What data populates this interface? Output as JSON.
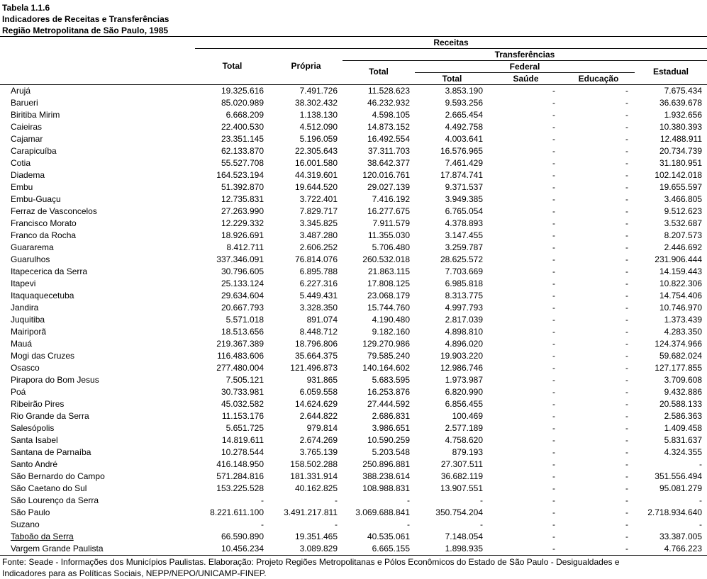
{
  "header": {
    "lines": [
      "Tabela 1.1.6",
      "Indicadores de Receitas e Transferências",
      "Região Metropolitana de São Paulo, 1985"
    ]
  },
  "table": {
    "groups": {
      "receitas": "Receitas",
      "transferencias": "Transferências",
      "federal": "Federal"
    },
    "columns": [
      "Total",
      "Própria",
      "Total",
      "Total",
      "Saúde",
      "Educação",
      "Estadual"
    ],
    "rows": [
      [
        "Arujá",
        "19.325.616",
        "7.491.726",
        "11.528.623",
        "3.853.190",
        "-",
        "-",
        "7.675.434"
      ],
      [
        "Barueri",
        "85.020.989",
        "38.302.432",
        "46.232.932",
        "9.593.256",
        "-",
        "-",
        "36.639.678"
      ],
      [
        "Biritiba Mirim",
        "6.668.209",
        "1.138.130",
        "4.598.105",
        "2.665.454",
        "-",
        "-",
        "1.932.656"
      ],
      [
        "Caieiras",
        "22.400.530",
        "4.512.090",
        "14.873.152",
        "4.492.758",
        "-",
        "-",
        "10.380.393"
      ],
      [
        "Cajamar",
        "23.351.145",
        "5.196.059",
        "16.492.554",
        "4.003.641",
        "-",
        "-",
        "12.488.911"
      ],
      [
        "Carapicuíba",
        "62.133.870",
        "22.305.643",
        "37.311.703",
        "16.576.965",
        "-",
        "-",
        "20.734.739"
      ],
      [
        "Cotia",
        "55.527.708",
        "16.001.580",
        "38.642.377",
        "7.461.429",
        "-",
        "-",
        "31.180.951"
      ],
      [
        "Diadema",
        "164.523.194",
        "44.319.601",
        "120.016.761",
        "17.874.741",
        "-",
        "-",
        "102.142.018"
      ],
      [
        "Embu",
        "51.392.870",
        "19.644.520",
        "29.027.139",
        "9.371.537",
        "-",
        "-",
        "19.655.597"
      ],
      [
        "Embu-Guaçu",
        "12.735.831",
        "3.722.401",
        "7.416.192",
        "3.949.385",
        "-",
        "-",
        "3.466.805"
      ],
      [
        "Ferraz de Vasconcelos",
        "27.263.990",
        "7.829.717",
        "16.277.675",
        "6.765.054",
        "-",
        "-",
        "9.512.623"
      ],
      [
        "Francisco Morato",
        "12.229.332",
        "3.345.825",
        "7.911.579",
        "4.378.893",
        "-",
        "-",
        "3.532.687"
      ],
      [
        "Franco da Rocha",
        "18.926.691",
        "3.487.280",
        "11.355.030",
        "3.147.455",
        "-",
        "-",
        "8.207.573"
      ],
      [
        "Guararema",
        "8.412.711",
        "2.606.252",
        "5.706.480",
        "3.259.787",
        "-",
        "-",
        "2.446.692"
      ],
      [
        "Guarulhos",
        "337.346.091",
        "76.814.076",
        "260.532.018",
        "28.625.572",
        "-",
        "-",
        "231.906.444"
      ],
      [
        "Itapecerica da Serra",
        "30.796.605",
        "6.895.788",
        "21.863.115",
        "7.703.669",
        "-",
        "-",
        "14.159.443"
      ],
      [
        "Itapevi",
        "25.133.124",
        "6.227.316",
        "17.808.125",
        "6.985.818",
        "-",
        "-",
        "10.822.306"
      ],
      [
        "Itaquaquecetuba",
        "29.634.604",
        "5.449.431",
        "23.068.179",
        "8.313.775",
        "-",
        "-",
        "14.754.406"
      ],
      [
        "Jandira",
        "20.667.793",
        "3.328.350",
        "15.744.760",
        "4.997.793",
        "-",
        "-",
        "10.746.970"
      ],
      [
        "Juquitiba",
        "5.571.018",
        "891.074",
        "4.190.480",
        "2.817.039",
        "-",
        "-",
        "1.373.439"
      ],
      [
        "Mairiporã",
        "18.513.656",
        "8.448.712",
        "9.182.160",
        "4.898.810",
        "-",
        "-",
        "4.283.350"
      ],
      [
        "Mauá",
        "219.367.389",
        "18.796.806",
        "129.270.986",
        "4.896.020",
        "-",
        "-",
        "124.374.966"
      ],
      [
        "Mogi das Cruzes",
        "116.483.606",
        "35.664.375",
        "79.585.240",
        "19.903.220",
        "-",
        "-",
        "59.682.024"
      ],
      [
        "Osasco",
        "277.480.004",
        "121.496.873",
        "140.164.602",
        "12.986.746",
        "-",
        "-",
        "127.177.855"
      ],
      [
        "Pirapora do Bom Jesus",
        "7.505.121",
        "931.865",
        "5.683.595",
        "1.973.987",
        "-",
        "-",
        "3.709.608"
      ],
      [
        "Poá",
        "30.733.981",
        "6.059.558",
        "16.253.876",
        "6.820.990",
        "-",
        "-",
        "9.432.886"
      ],
      [
        "Ribeirão Pires",
        "45.032.582",
        "14.624.629",
        "27.444.592",
        "6.856.455",
        "-",
        "-",
        "20.588.133"
      ],
      [
        "Rio Grande da Serra",
        "11.153.176",
        "2.644.822",
        "2.686.831",
        "100.469",
        "-",
        "-",
        "2.586.363"
      ],
      [
        "Salesópolis",
        "5.651.725",
        "979.814",
        "3.986.651",
        "2.577.189",
        "-",
        "-",
        "1.409.458"
      ],
      [
        "Santa Isabel",
        "14.819.611",
        "2.674.269",
        "10.590.259",
        "4.758.620",
        "-",
        "-",
        "5.831.637"
      ],
      [
        "Santana de Parnaíba",
        "10.278.544",
        "3.765.139",
        "5.203.548",
        "879.193",
        "-",
        "-",
        "4.324.355"
      ],
      [
        "Santo André",
        "416.148.950",
        "158.502.288",
        "250.896.881",
        "27.307.511",
        "-",
        "-",
        "-"
      ],
      [
        "São Bernardo do Campo",
        "571.284.816",
        "181.331.914",
        "388.238.614",
        "36.682.119",
        "-",
        "-",
        "351.556.494"
      ],
      [
        "São Caetano do Sul",
        "153.225.528",
        "40.162.825",
        "108.988.831",
        "13.907.551",
        "-",
        "-",
        "95.081.279"
      ],
      [
        "São Lourenço da Serra",
        "-",
        "-",
        "-",
        "-",
        "-",
        "-",
        "-"
      ],
      [
        "São Paulo",
        "8.221.611.100",
        "3.491.217.811",
        "3.069.688.841",
        "350.754.204",
        "-",
        "-",
        "2.718.934.640"
      ],
      [
        "Suzano",
        "-",
        "-",
        "-",
        "-",
        "-",
        "-",
        "-"
      ],
      [
        "Taboão da Serra",
        "66.590.890",
        "19.351.465",
        "40.535.061",
        "7.148.054",
        "-",
        "-",
        "33.387.005"
      ],
      [
        "Vargem Grande Paulista",
        "10.456.234",
        "3.089.829",
        "6.665.155",
        "1.898.935",
        "-",
        "-",
        "4.766.223"
      ]
    ]
  },
  "footer": {
    "lines": [
      "Fonte: Seade - Informações dos Municípios Paulistas. Elaboração: Projeto Regiões Metropolitanas e Pólos Econômicos do Estado de São Paulo - Desigualdades e",
      "Indicadores para as Políticas Sociais, NEPP/NEPO/UNICAMP-FINEP."
    ]
  }
}
